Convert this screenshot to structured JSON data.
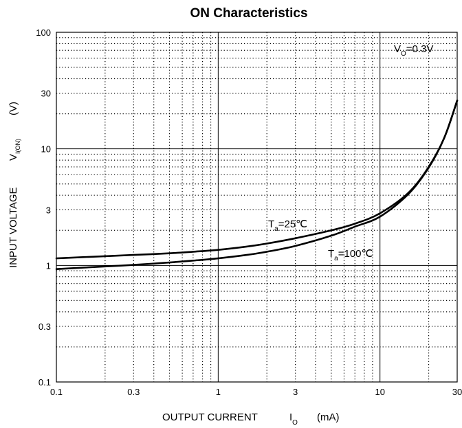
{
  "chart_data": {
    "type": "line",
    "title": "ON Characteristics",
    "x_scale": "log",
    "y_scale": "log",
    "xlim": [
      0.1,
      30
    ],
    "ylim": [
      0.1,
      100
    ],
    "x_ticks": [
      0.1,
      0.3,
      1,
      3,
      10,
      30
    ],
    "x_tick_labels": [
      "0.1",
      "0.3",
      "1",
      "3",
      "10",
      "30"
    ],
    "y_ticks": [
      0.1,
      0.3,
      1,
      3,
      10,
      30,
      100
    ],
    "y_tick_labels": [
      "0.1",
      "0.3",
      "1",
      "3",
      "10",
      "30",
      "100"
    ],
    "xlabel": {
      "main": "OUTPUT CURRENT",
      "symbol": "I",
      "subscript": "O",
      "unit": "(mA)"
    },
    "ylabel": {
      "main": "INPUT VOLTAGE",
      "symbol": "V",
      "subscript": "I(ON)",
      "unit": "(V)"
    },
    "grid": true,
    "condition": {
      "symbol": "V",
      "subscript": "O",
      "value": "=0.3V"
    },
    "series": [
      {
        "name": "Ta=25°C",
        "label": {
          "symbol": "T",
          "subscript": "a",
          "value": "=25℃"
        },
        "x": [
          0.1,
          0.2,
          0.3,
          0.5,
          0.7,
          1,
          1.5,
          2,
          3,
          5,
          7,
          10,
          15,
          20,
          25,
          30
        ],
        "y": [
          1.15,
          1.2,
          1.23,
          1.27,
          1.31,
          1.36,
          1.45,
          1.54,
          1.71,
          2.0,
          2.28,
          2.8,
          4.2,
          7.0,
          12.5,
          26
        ]
      },
      {
        "name": "Ta=100°C",
        "label": {
          "symbol": "T",
          "subscript": "a",
          "value": "=100℃"
        },
        "x": [
          0.1,
          0.2,
          0.3,
          0.5,
          0.7,
          1,
          1.5,
          2,
          3,
          5,
          7,
          10,
          15,
          20,
          25,
          30
        ],
        "y": [
          0.93,
          0.98,
          1.01,
          1.06,
          1.1,
          1.15,
          1.23,
          1.31,
          1.47,
          1.8,
          2.15,
          2.62,
          4.1,
          6.9,
          12.5,
          26
        ]
      }
    ]
  }
}
